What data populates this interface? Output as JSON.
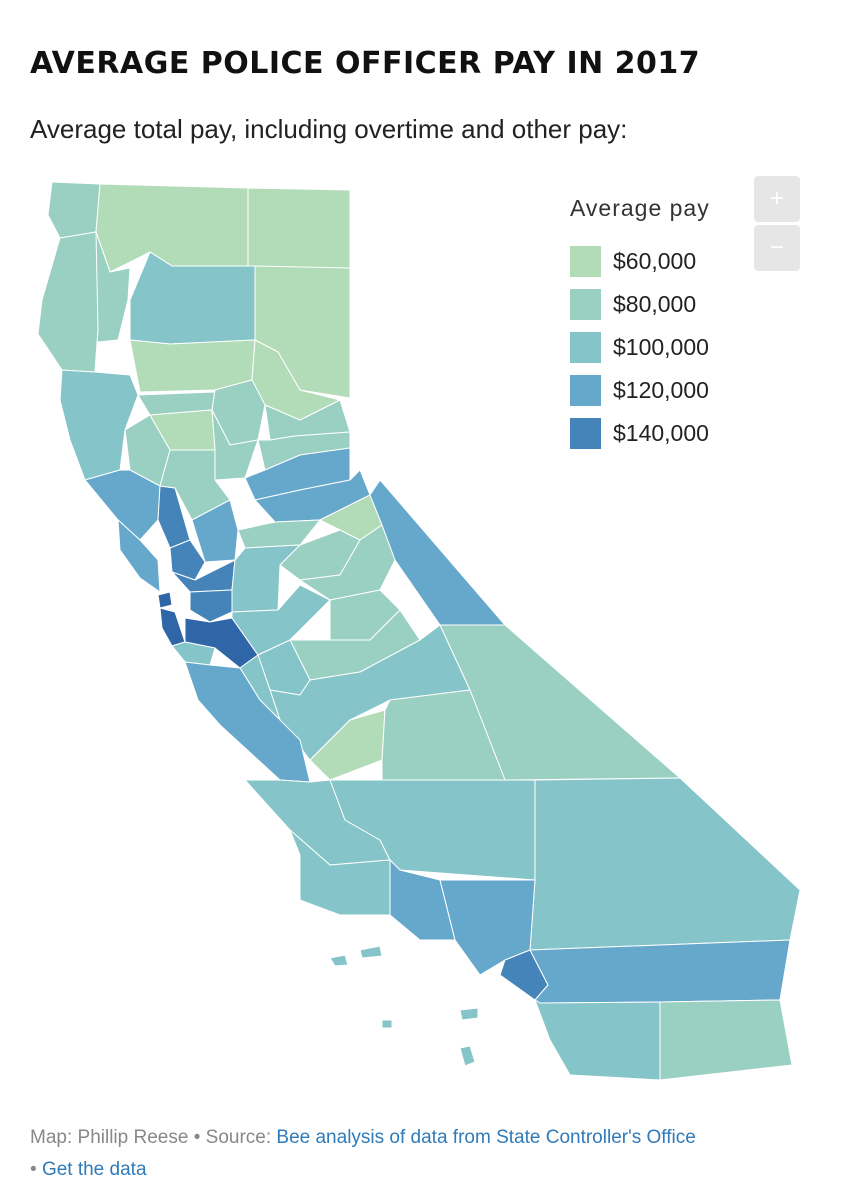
{
  "header": {
    "title": "AVERAGE POLICE OFFICER PAY IN 2017",
    "subtitle": "Average total pay, including overtime and other pay:"
  },
  "legend": {
    "title": "Average pay",
    "items": [
      {
        "label": "$60,000",
        "color": "#b2dcb8"
      },
      {
        "label": "$80,000",
        "color": "#99d0c1"
      },
      {
        "label": "$100,000",
        "color": "#85c4c8"
      },
      {
        "label": "$120,000",
        "color": "#65a8cb"
      },
      {
        "label": "$140,000",
        "color": "#4584b9"
      }
    ]
  },
  "zoom": {
    "in_label": "+",
    "out_label": "−"
  },
  "map": {
    "colors": {
      "c60": "#b2dcb8",
      "c80": "#99d0c1",
      "c100": "#85c4c8",
      "c120": "#65a8cb",
      "c140": "#4584b9",
      "c150": "#2e66a8",
      "border": "#ffffff"
    }
  },
  "footer": {
    "credit": "Map: Phillip Reese",
    "source_prefix": "Source:",
    "source_link": "Bee analysis of data from State Controller's Office",
    "data_link": "Get the data",
    "separator": "•"
  }
}
